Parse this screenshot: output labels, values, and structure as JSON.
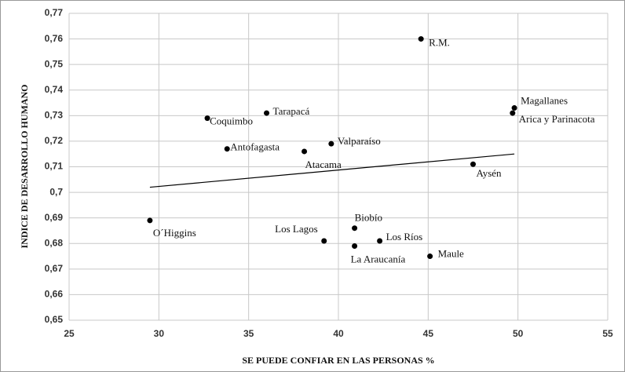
{
  "chart_data": {
    "type": "scatter",
    "xlabel": "SE PUEDE CONFIAR  EN LAS PERSONAS  %",
    "ylabel": "INDICE DE DESARROLLO HUMANO",
    "xlim": [
      25,
      55
    ],
    "xticks": [
      25,
      30,
      35,
      40,
      45,
      50,
      55
    ],
    "ylim": [
      0.65,
      0.77
    ],
    "yticks": [
      {
        "value": 0.65,
        "label": "0,65"
      },
      {
        "value": 0.66,
        "label": "0,66"
      },
      {
        "value": 0.67,
        "label": "0,67"
      },
      {
        "value": 0.68,
        "label": "0,68"
      },
      {
        "value": 0.69,
        "label": "0,69"
      },
      {
        "value": 0.7,
        "label": "0,7"
      },
      {
        "value": 0.71,
        "label": "0,71"
      },
      {
        "value": 0.72,
        "label": "0,72"
      },
      {
        "value": 0.73,
        "label": "0,73"
      },
      {
        "value": 0.74,
        "label": "0,74"
      },
      {
        "value": 0.75,
        "label": "0,75"
      },
      {
        "value": 0.76,
        "label": "0,76"
      },
      {
        "value": 0.77,
        "label": "0,77"
      }
    ],
    "grid": true,
    "color": "#000000",
    "labels": [
      "R.M.",
      "Magallanes",
      "Arica y Parinacota",
      "Tarapacá",
      "Coquimbo",
      "Antofagasta",
      "Valparaíso",
      "Atacama",
      "Aysén",
      "O´Higgins",
      "Biobío",
      "Los Lagos",
      "Los Ríos",
      "La Araucanía",
      "Maule"
    ],
    "x": [
      44.6,
      49.8,
      49.7,
      36.0,
      32.7,
      33.8,
      39.6,
      38.1,
      47.5,
      29.5,
      40.9,
      39.2,
      42.3,
      40.9,
      45.1
    ],
    "y": [
      0.76,
      0.733,
      0.731,
      0.731,
      0.729,
      0.717,
      0.719,
      0.716,
      0.711,
      0.689,
      0.686,
      0.681,
      0.681,
      0.679,
      0.675
    ],
    "trendline": {
      "x": [
        29.5,
        49.8
      ],
      "y": [
        0.702,
        0.715
      ]
    }
  }
}
